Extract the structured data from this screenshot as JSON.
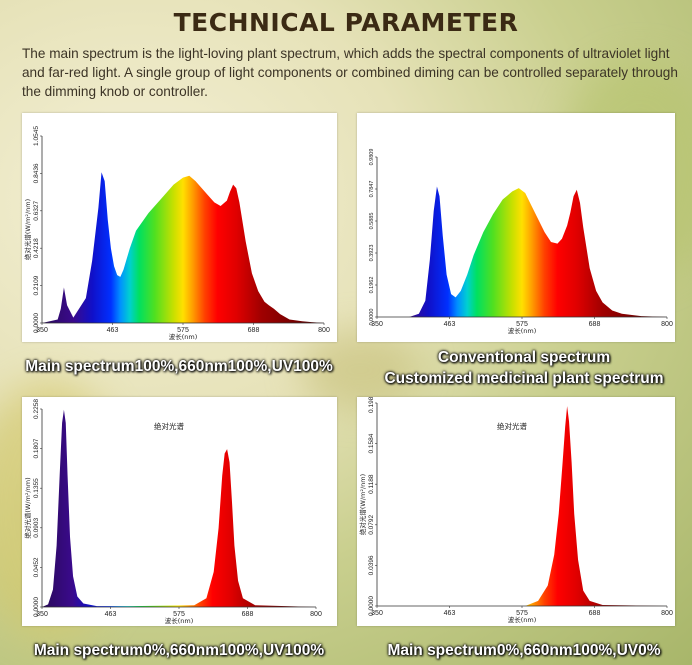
{
  "header": {
    "title": "TECHNICAL PARAMETER",
    "description": "The main spectrum is the light-loving plant spectrum, which adds the spectral components of ultraviolet light and far-red light. A single group of light components or combined diming can be controlled separately through the dimming knob or controller."
  },
  "captions": {
    "c1": "Main spectrum100%,660nm100%,UV100%",
    "c2a": "Conventional spectrum",
    "c2b": "Customized medicinal plant  spectrum",
    "c3": "Main spectrum0%,660nm100%,UV100%",
    "c4": "Main spectrum0%,660nm100%,UV0%"
  },
  "chart_data": [
    {
      "type": "area",
      "title": "",
      "xlabel": "波长(nm)",
      "ylabel": "绝对光谱(W/m²/nm)",
      "xlim": [
        350,
        800
      ],
      "ylim": [
        0,
        1.0545
      ],
      "xticks": [
        "350",
        "463",
        "575",
        "688",
        "800"
      ],
      "yticks": [
        "0.0000",
        "0.2109",
        "0.4218",
        "0.6327",
        "0.8436",
        "1.0545"
      ],
      "grid": false,
      "series": [
        {
          "x": [
            350,
            375,
            380,
            385,
            390,
            400,
            420,
            430,
            440,
            445,
            450,
            455,
            460,
            465,
            470,
            475,
            480,
            490,
            500,
            520,
            540,
            560,
            575,
            585,
            595,
            605,
            615,
            625,
            635,
            645,
            650,
            655,
            660,
            665,
            675,
            685,
            695,
            705,
            712,
            720,
            730,
            745,
            765,
            780,
            800
          ],
          "y": [
            0,
            0.02,
            0.08,
            0.2,
            0.1,
            0.03,
            0.14,
            0.35,
            0.65,
            0.85,
            0.8,
            0.58,
            0.42,
            0.32,
            0.27,
            0.26,
            0.3,
            0.42,
            0.52,
            0.62,
            0.7,
            0.78,
            0.82,
            0.83,
            0.8,
            0.76,
            0.72,
            0.68,
            0.66,
            0.69,
            0.74,
            0.78,
            0.76,
            0.68,
            0.46,
            0.28,
            0.18,
            0.12,
            0.1,
            0.08,
            0.05,
            0.02,
            0.01,
            0.005,
            0
          ]
        }
      ]
    },
    {
      "type": "area",
      "title": "",
      "xlabel": "波长(nm)",
      "ylabel": "",
      "xlim": [
        350,
        800
      ],
      "ylim": [
        0,
        0.9809
      ],
      "xticks": [
        "350",
        "463",
        "575",
        "688",
        "800"
      ],
      "yticks": [
        "0.0000",
        "0.1962",
        "0.3923",
        "0.5885",
        "0.7847",
        "0.9809"
      ],
      "grid": false,
      "series": [
        {
          "x": [
            350,
            400,
            415,
            425,
            432,
            438,
            443,
            447,
            452,
            458,
            465,
            472,
            480,
            490,
            500,
            515,
            530,
            545,
            560,
            570,
            580,
            590,
            600,
            610,
            620,
            630,
            637,
            645,
            650,
            655,
            660,
            665,
            670,
            680,
            690,
            700,
            715,
            730,
            760,
            800
          ],
          "y": [
            0,
            0,
            0.02,
            0.1,
            0.35,
            0.65,
            0.8,
            0.74,
            0.5,
            0.26,
            0.14,
            0.12,
            0.16,
            0.26,
            0.38,
            0.52,
            0.63,
            0.72,
            0.77,
            0.79,
            0.76,
            0.68,
            0.6,
            0.52,
            0.46,
            0.45,
            0.48,
            0.56,
            0.64,
            0.74,
            0.78,
            0.7,
            0.55,
            0.3,
            0.16,
            0.09,
            0.04,
            0.02,
            0.005,
            0
          ]
        }
      ]
    },
    {
      "type": "area",
      "title": "绝对光谱",
      "xlabel": "波长(nm)",
      "ylabel": "绝对光谱(W/m²/nm)",
      "xlim": [
        350,
        800
      ],
      "ylim": [
        0,
        0.2258
      ],
      "xticks": [
        "350",
        "463",
        "575",
        "688",
        "800"
      ],
      "yticks": [
        "0.0000",
        "0.0452",
        "0.0903",
        "0.1355",
        "0.1807",
        "0.2258"
      ],
      "grid": false,
      "series": [
        {
          "x": [
            350,
            360,
            368,
            374,
            379,
            383,
            386,
            389,
            392,
            396,
            401,
            408,
            418,
            440,
            500,
            600,
            620,
            632,
            640,
            646,
            650,
            654,
            658,
            662,
            666,
            672,
            680,
            700,
            800
          ],
          "y": [
            0,
            0.003,
            0.02,
            0.07,
            0.15,
            0.21,
            0.225,
            0.21,
            0.15,
            0.08,
            0.035,
            0.012,
            0.004,
            0.001,
            0.001,
            0.002,
            0.01,
            0.04,
            0.09,
            0.15,
            0.175,
            0.18,
            0.165,
            0.12,
            0.07,
            0.03,
            0.01,
            0.002,
            0
          ]
        }
      ]
    },
    {
      "type": "area",
      "title": "绝对光谱",
      "xlabel": "波长(nm)",
      "ylabel": "绝对光谱(W/m²/nm)",
      "xlim": [
        350,
        800
      ],
      "ylim": [
        0,
        0.198
      ],
      "xticks": [
        "350",
        "463",
        "575",
        "688",
        "800"
      ],
      "yticks": [
        "0.0000",
        "0.0396",
        "0.0792",
        "0.1188",
        "0.1584",
        "0.1980"
      ],
      "grid": false,
      "series": [
        {
          "x": [
            350,
            580,
            600,
            615,
            625,
            632,
            638,
            642,
            645,
            648,
            652,
            656,
            662,
            670,
            680,
            700,
            800
          ],
          "y": [
            0,
            0,
            0.005,
            0.02,
            0.05,
            0.09,
            0.14,
            0.175,
            0.195,
            0.18,
            0.14,
            0.09,
            0.045,
            0.015,
            0.005,
            0.001,
            0
          ]
        }
      ]
    }
  ]
}
